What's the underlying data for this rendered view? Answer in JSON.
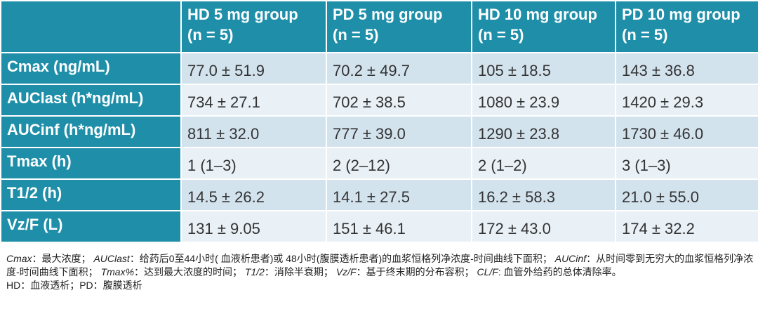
{
  "table": {
    "columns": [
      {
        "line1": "HD 5 mg group",
        "line2": "(n = 5)"
      },
      {
        "line1": "PD 5 mg group",
        "line2": "(n = 5)"
      },
      {
        "line1": "HD 10 mg group",
        "line2": "(n = 5)"
      },
      {
        "line1": "PD 10 mg group",
        "line2": "(n = 5)"
      }
    ],
    "rows": [
      {
        "label": "Cmax (ng/mL)",
        "cells": [
          "77.0 ± 51.9",
          "70.2 ± 49.7",
          "105 ± 18.5",
          "143 ± 36.8"
        ]
      },
      {
        "label": "AUClast (h*ng/mL)",
        "cells": [
          "734 ± 27.1",
          "702 ± 38.5",
          "1080 ± 23.9",
          "1420 ± 29.3"
        ]
      },
      {
        "label": "AUCinf (h*ng/mL)",
        "cells": [
          "811 ± 32.0",
          "777 ± 39.0",
          "1290 ± 23.8",
          "1730 ± 46.0"
        ]
      },
      {
        "label": "Tmax (h)",
        "cells": [
          "1 (1–3)",
          "2 (2–12)",
          "2 (1–2)",
          "3 (1–3)"
        ]
      },
      {
        "label": "T1/2 (h)",
        "cells": [
          "14.5 ± 26.2",
          "14.1 ± 27.5",
          "16.2 ± 58.3",
          "21.0 ± 55.0"
        ]
      },
      {
        "label": "Vz/F (L)",
        "cells": [
          "131 ± 9.05",
          "151 ± 46.1",
          "172 ± 43.0",
          "174 ± 32.2"
        ]
      }
    ]
  },
  "notes": {
    "terms": [
      {
        "term": "Cmax",
        "def": "：最大浓度；"
      },
      {
        "term": "AUClast",
        "def": "：给药后0至44小时( 血液析患者)或 48小时(腹膜透析患者)的血浆恒格列净浓度-时间曲线下面积；"
      },
      {
        "term": "AUCinf",
        "def": "：从时间零到无穷大的血浆恒格列净浓度-时间曲线下面积；"
      },
      {
        "term": "Tmax%",
        "def": "：达到最大浓度的时间；"
      },
      {
        "term": "T1/2",
        "def": "：消除半衰期；"
      },
      {
        "term": "Vz/F",
        "def": "：基于终末期的分布容积；"
      },
      {
        "term": "CL/F",
        "def": ": 血管外给药的总体清除率。"
      }
    ],
    "abbrev": "HD：血液透析；PD：腹膜透析"
  }
}
